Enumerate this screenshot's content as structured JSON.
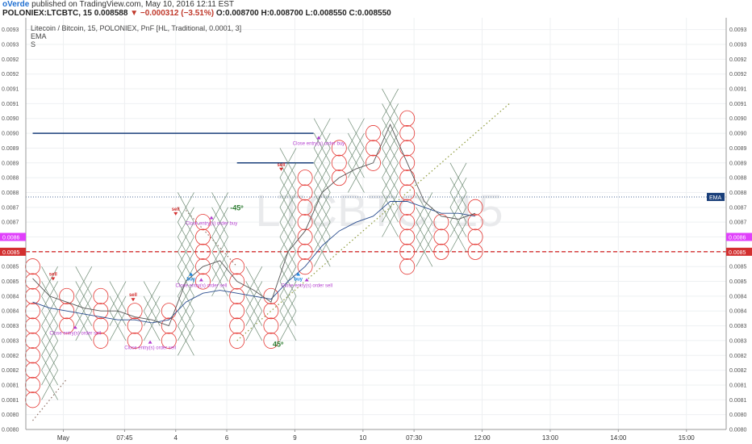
{
  "header": {
    "author": "oVerde",
    "published": "published on TradingView.com, May 10, 2016 12:11 EST",
    "symbol": "POLONIEX:LTCBTC, 15",
    "last": "0.008588",
    "change": "−0.000312 (−3.51%)",
    "open": "O:0.008700",
    "high": "H:0.008700",
    "low": "L:0.008550",
    "close": "C:0.008550"
  },
  "legend": {
    "title": "Litecoin / Bitcoin, 15, POLONIEX, PnF [HL, Traditional, 0.0001, 3]",
    "line2": "EMA",
    "line3": "S"
  },
  "colors": {
    "x_col": "#6e8b74",
    "o_col": "#e53935",
    "ema": "#2a4d8f",
    "sma": "#555555",
    "level_dotted": "#1a3f7a",
    "level_red": "#d32f2f",
    "buy": "#1e88e5",
    "sell": "#d32f2f",
    "close": "#b33fcf",
    "badge_pink": "#e040fb",
    "badge_red": "#e64a19",
    "badge_blue": "#1a3f7a",
    "trend45": "#2e7d32",
    "trendline": "#8d9a3a"
  },
  "watermark": "LTCBTC, 15",
  "chart_data": {
    "type": "pnf",
    "box_size": 0.0001,
    "reversal": 3,
    "ylim": [
      0.00795,
      0.00934
    ],
    "y_ticks": [
      "0.0093",
      "0.0093",
      "0.0092",
      "0.0092",
      "0.0091",
      "0.0091",
      "0.0090",
      "0.0090",
      "0.0089",
      "0.0089",
      "0.0088",
      "0.0088",
      "0.0087",
      "0.0087",
      "0.0086",
      "0.0086",
      "0.0085",
      "0.0085",
      "0.0084",
      "0.0084",
      "0.0083",
      "0.0083",
      "0.0082",
      "0.0082",
      "0.0081",
      "0.0081",
      "0.0080",
      "0.0080"
    ],
    "x_labels": [
      {
        "label": "May",
        "col": 1.8
      },
      {
        "label": "07:45",
        "col": 5.4
      },
      {
        "label": "4",
        "col": 8.4
      },
      {
        "label": "6",
        "col": 11.4
      },
      {
        "label": "9",
        "col": 15.4
      },
      {
        "label": "10",
        "col": 19.4
      },
      {
        "label": "07:30",
        "col": 22.4
      },
      {
        "label": "12:00",
        "col": 26.4
      },
      {
        "label": "13:00",
        "col": 30.4
      },
      {
        "label": "14:00",
        "col": 34.4
      },
      {
        "label": "15:00",
        "col": 38.4
      }
    ],
    "columns": [
      {
        "col": 0,
        "type": "O",
        "from": 0.00805,
        "to": 0.0085
      },
      {
        "col": 1,
        "type": "X",
        "from": 0.0081,
        "to": 0.00845
      },
      {
        "col": 2,
        "type": "O",
        "from": 0.0083,
        "to": 0.0084
      },
      {
        "col": 3,
        "type": "X",
        "from": 0.0083,
        "to": 0.00845
      },
      {
        "col": 4,
        "type": "O",
        "from": 0.00825,
        "to": 0.0084
      },
      {
        "col": 5,
        "type": "X",
        "from": 0.0083,
        "to": 0.0084
      },
      {
        "col": 6,
        "type": "O",
        "from": 0.00825,
        "to": 0.00835
      },
      {
        "col": 7,
        "type": "X",
        "from": 0.0083,
        "to": 0.0084
      },
      {
        "col": 8,
        "type": "O",
        "from": 0.00825,
        "to": 0.00835
      },
      {
        "col": 9,
        "type": "X",
        "from": 0.00825,
        "to": 0.0087
      },
      {
        "col": 10,
        "type": "O",
        "from": 0.00845,
        "to": 0.00865
      },
      {
        "col": 11,
        "type": "X",
        "from": 0.00845,
        "to": 0.0087
      },
      {
        "col": 12,
        "type": "O",
        "from": 0.00825,
        "to": 0.0085
      },
      {
        "col": 13,
        "type": "X",
        "from": 0.0083,
        "to": 0.00845
      },
      {
        "col": 14,
        "type": "O",
        "from": 0.00825,
        "to": 0.0084
      },
      {
        "col": 15,
        "type": "X",
        "from": 0.0083,
        "to": 0.00885
      },
      {
        "col": 16,
        "type": "O",
        "from": 0.0085,
        "to": 0.0088
      },
      {
        "col": 17,
        "type": "X",
        "from": 0.00855,
        "to": 0.00895
      },
      {
        "col": 18,
        "type": "O",
        "from": 0.0088,
        "to": 0.0089
      },
      {
        "col": 19,
        "type": "X",
        "from": 0.0088,
        "to": 0.00895
      },
      {
        "col": 20,
        "type": "O",
        "from": 0.00885,
        "to": 0.00895
      },
      {
        "col": 21,
        "type": "X",
        "from": 0.00865,
        "to": 0.00905
      },
      {
        "col": 22,
        "type": "O",
        "from": 0.0085,
        "to": 0.009
      },
      {
        "col": 23,
        "type": "X",
        "from": 0.00855,
        "to": 0.0087
      },
      {
        "col": 24,
        "type": "O",
        "from": 0.00855,
        "to": 0.00865
      },
      {
        "col": 25,
        "type": "X",
        "from": 0.0086,
        "to": 0.0088
      },
      {
        "col": 26,
        "type": "O",
        "from": 0.00855,
        "to": 0.0087
      }
    ],
    "series": [
      {
        "name": "EMA",
        "line": [
          [
            0,
            0.00838
          ],
          [
            1,
            0.00836
          ],
          [
            2,
            0.00835
          ],
          [
            3,
            0.00834
          ],
          [
            4,
            0.00833
          ],
          [
            5,
            0.00832
          ],
          [
            6,
            0.00832
          ],
          [
            7,
            0.00831
          ],
          [
            8,
            0.00832
          ],
          [
            9,
            0.00838
          ],
          [
            10,
            0.00841
          ],
          [
            11,
            0.00842
          ],
          [
            12,
            0.00841
          ],
          [
            13,
            0.0084
          ],
          [
            14,
            0.00839
          ],
          [
            15,
            0.00845
          ],
          [
            16,
            0.0085
          ],
          [
            17,
            0.00857
          ],
          [
            18,
            0.00862
          ],
          [
            19,
            0.00865
          ],
          [
            20,
            0.00867
          ],
          [
            21,
            0.00872
          ],
          [
            22,
            0.00872
          ],
          [
            23,
            0.0087
          ],
          [
            24,
            0.00868
          ],
          [
            25,
            0.00868
          ],
          [
            26,
            0.00867
          ]
        ]
      },
      {
        "name": "S",
        "line": [
          [
            0,
            0.00846
          ],
          [
            1,
            0.0084
          ],
          [
            2,
            0.00838
          ],
          [
            3,
            0.00836
          ],
          [
            4,
            0.00835
          ],
          [
            5,
            0.00835
          ],
          [
            6,
            0.00833
          ],
          [
            7,
            0.00832
          ],
          [
            8,
            0.0083
          ],
          [
            9,
            0.00845
          ],
          [
            10,
            0.0085
          ],
          [
            11,
            0.00852
          ],
          [
            12,
            0.00845
          ],
          [
            13,
            0.00842
          ],
          [
            14,
            0.00838
          ],
          [
            15,
            0.00855
          ],
          [
            16,
            0.00862
          ],
          [
            17,
            0.00875
          ],
          [
            18,
            0.0088
          ],
          [
            19,
            0.00883
          ],
          [
            20,
            0.00885
          ],
          [
            21,
            0.00898
          ],
          [
            22,
            0.00885
          ],
          [
            23,
            0.00872
          ],
          [
            24,
            0.00867
          ],
          [
            25,
            0.00866
          ],
          [
            26,
            0.00868
          ]
        ]
      }
    ],
    "levels": [
      {
        "value": 0.008735,
        "color": "#1a3f7a",
        "style": "dotted",
        "label": "EMA"
      },
      {
        "value": 0.0086,
        "color": "#e040fb",
        "style": "none",
        "label": "0.0086",
        "side": "both"
      },
      {
        "value": 0.00855,
        "color": "#d32f2f",
        "style": "dashed",
        "label": "0.0085",
        "side": "both"
      }
    ],
    "hlines": [
      {
        "value": 0.00895,
        "from": 0,
        "to": 16.5
      },
      {
        "value": 0.00885,
        "from": 12,
        "to": 16.5
      }
    ],
    "signals": [
      {
        "type": "sell",
        "col": 1.2,
        "y": 0.00845,
        "text": "sell"
      },
      {
        "type": "sell",
        "col": 5.9,
        "y": 0.00838,
        "text": "sell"
      },
      {
        "type": "sell",
        "col": 8.4,
        "y": 0.00867,
        "text": "sell"
      },
      {
        "type": "sell",
        "col": 14.6,
        "y": 0.00882,
        "text": "sell"
      },
      {
        "type": "buy",
        "col": 9.3,
        "y": 0.00848,
        "text": "buy"
      },
      {
        "type": "buy",
        "col": 15.6,
        "y": 0.00848,
        "text": "buy"
      },
      {
        "type": "close",
        "col": 2.5,
        "y": 0.00829,
        "text": "Close entry(s) order sell"
      },
      {
        "type": "close",
        "col": 6.9,
        "y": 0.00824,
        "text": "Close entry(s) order sell"
      },
      {
        "type": "close",
        "col": 9.9,
        "y": 0.00845,
        "text": "Close entry(s) order sell"
      },
      {
        "type": "close",
        "col": 16.1,
        "y": 0.00845,
        "text": "Close entry(s) order sell"
      },
      {
        "type": "close",
        "col": 10.5,
        "y": 0.00866,
        "text": "Close entry(s) order buy"
      },
      {
        "type": "close",
        "col": 16.8,
        "y": 0.00893,
        "text": "Close entry(s) order buy"
      }
    ],
    "annotations": [
      {
        "text": "-45º",
        "col": 11.6,
        "y": 0.00869
      },
      {
        "text": "45º",
        "col": 14.1,
        "y": 0.00823
      }
    ],
    "trend_up": [
      [
        12,
        0.00825
      ],
      [
        28,
        0.00905
      ]
    ],
    "trend_up2": [
      [
        0,
        0.00798
      ],
      [
        2,
        0.00812
      ]
    ],
    "trend_dn": [
      [
        9,
        0.00869
      ],
      [
        12,
        0.0085
      ]
    ]
  }
}
